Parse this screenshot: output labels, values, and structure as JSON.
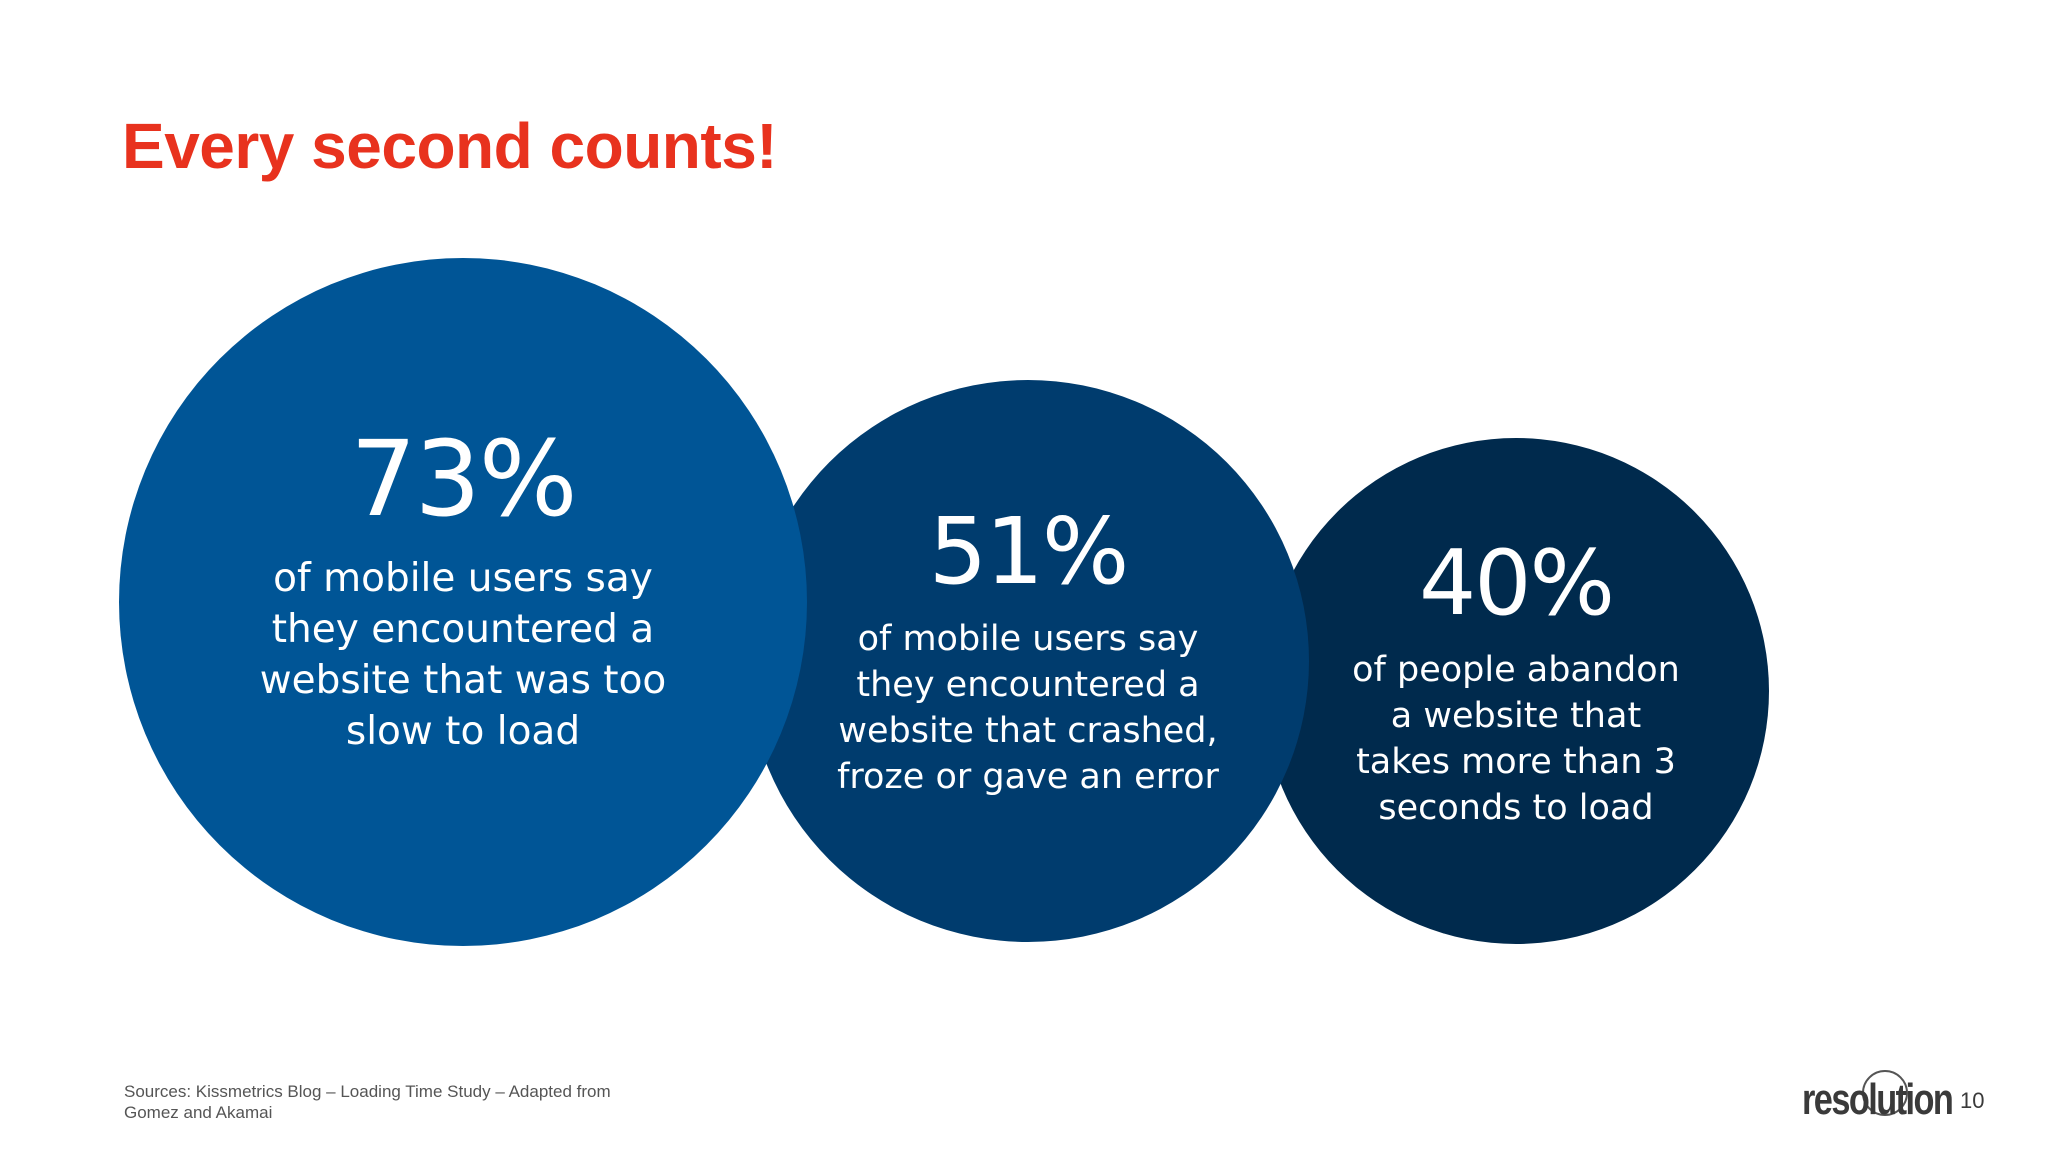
{
  "slide": {
    "title": "Every second counts!",
    "title_color": "#e8321e",
    "page_number": "10"
  },
  "stats": [
    {
      "value": "73%",
      "description": "of mobile users say\nthey encountered a\nwebsite that was too\nslow to load",
      "color": "#005596"
    },
    {
      "value": "51%",
      "description": "of mobile users say\nthey encountered a\nwebsite that crashed,\nfroze or gave an error",
      "color": "#003c6e"
    },
    {
      "value": "40%",
      "description": "of people abandon\na website that\ntakes more than 3\nseconds to load",
      "color": "#002a4d"
    }
  ],
  "footer": {
    "sources": "Sources: Kissmetrics Blog – Loading Time Study – Adapted from\nGomez and Akamai",
    "logo_text": "resolution"
  }
}
